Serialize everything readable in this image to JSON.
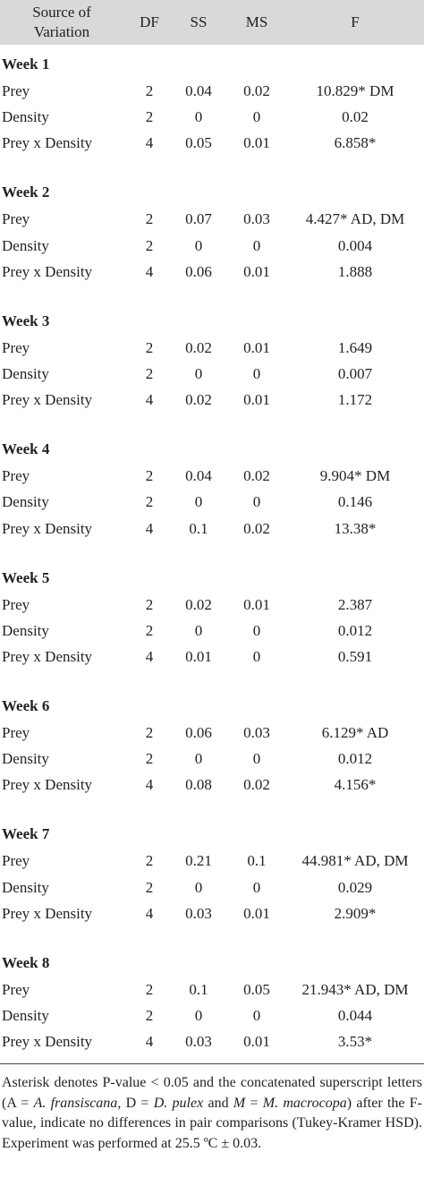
{
  "table": {
    "header": [
      "Source of Variation",
      "DF",
      "SS",
      "MS",
      "F"
    ],
    "weeks": [
      {
        "title": "Week 1",
        "rows": [
          [
            "Prey",
            "2",
            "0.04",
            "0.02",
            "10.829* DM"
          ],
          [
            "Density",
            "2",
            "0",
            "0",
            "0.02"
          ],
          [
            "Prey x Density",
            "4",
            "0.05",
            "0.01",
            "6.858*"
          ]
        ]
      },
      {
        "title": "Week 2",
        "rows": [
          [
            "Prey",
            "2",
            "0.07",
            "0.03",
            "4.427* AD, DM"
          ],
          [
            "Density",
            "2",
            "0",
            "0",
            "0.004"
          ],
          [
            "Prey x Density",
            "4",
            "0.06",
            "0.01",
            "1.888"
          ]
        ]
      },
      {
        "title": "Week 3",
        "rows": [
          [
            "Prey",
            "2",
            "0.02",
            "0.01",
            "1.649"
          ],
          [
            "Density",
            "2",
            "0",
            "0",
            "0.007"
          ],
          [
            "Prey x Density",
            "4",
            "0.02",
            "0.01",
            "1.172"
          ]
        ]
      },
      {
        "title": "Week 4",
        "rows": [
          [
            "Prey",
            "2",
            "0.04",
            "0.02",
            "9.904* DM"
          ],
          [
            "Density",
            "2",
            "0",
            "0",
            "0.146"
          ],
          [
            "Prey x Density",
            "4",
            "0.1",
            "0.02",
            "13.38*"
          ]
        ]
      },
      {
        "title": "Week 5",
        "rows": [
          [
            "Prey",
            "2",
            "0.02",
            "0.01",
            "2.387"
          ],
          [
            "Density",
            "2",
            "0",
            "0",
            "0.012"
          ],
          [
            "Prey x Density",
            "4",
            "0.01",
            "0",
            "0.591"
          ]
        ]
      },
      {
        "title": "Week 6",
        "rows": [
          [
            "Prey",
            "2",
            "0.06",
            "0.03",
            "6.129* AD"
          ],
          [
            "Density",
            "2",
            "0",
            "0",
            "0.012"
          ],
          [
            "Prey x Density",
            "4",
            "0.08",
            "0.02",
            "4.156*"
          ]
        ]
      },
      {
        "title": "Week 7",
        "rows": [
          [
            "Prey",
            "2",
            "0.21",
            "0.1",
            "44.981* AD, DM"
          ],
          [
            "Density",
            "2",
            "0",
            "0",
            "0.029"
          ],
          [
            "Prey x Density",
            "4",
            "0.03",
            "0.01",
            "2.909*"
          ]
        ]
      },
      {
        "title": "Week 8",
        "rows": [
          [
            "Prey",
            "2",
            "0.1",
            "0.05",
            "21.943* AD, DM"
          ],
          [
            "Density",
            "2",
            "0",
            "0",
            "0.044"
          ],
          [
            "Prey x Density",
            "4",
            "0.03",
            "0.01",
            "3.53*"
          ]
        ]
      }
    ]
  },
  "footnote": [
    "Asterisk denotes P-value < 0.05 and the concatenated superscript letters (A = ",
    "A. fransiscana",
    ", D = ",
    "D. pulex",
    " and ",
    "M",
    " = ",
    "M. macrocopa",
    ") after the F-value, indicate no differences in pair comparisons (Tukey-Kramer HSD). Experiment was performed at 25.5 ºC ± 0.03."
  ]
}
